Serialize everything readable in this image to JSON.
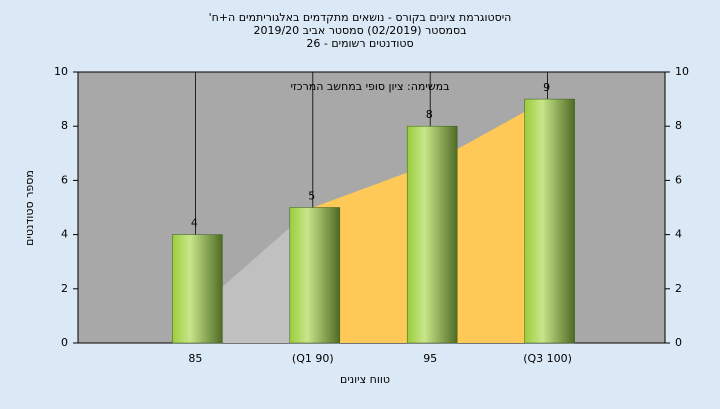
{
  "chart_data": {
    "type": "bar",
    "title_lines": [
      "היסטוגרמת ציונים בקורס - נושאים מתקדמים באלגוריתמים ה+ח'",
      "בסמסטר  (02/2019)  סמסטר אביב 2019/20",
      "סטודנטים רשומים - 26"
    ],
    "annotation": "במשימה: ציון סופי במחשב המרכזי",
    "x_label": "טווח ציונים",
    "y_label": "מספר סטודנטים",
    "categories": [
      "85",
      "(Q1 90)",
      "95",
      "(Q3 100)"
    ],
    "values": [
      4,
      5,
      8,
      9
    ],
    "background_areas": [
      {
        "color": "#c0c0c0",
        "values": [
          1.2,
          5,
          null,
          null
        ]
      },
      {
        "color": "#ffc957",
        "values": [
          null,
          5,
          6.6,
          9
        ]
      }
    ],
    "ylim": [
      0,
      10
    ],
    "yticks": [
      0,
      2,
      4,
      6,
      8,
      10
    ],
    "y2lim": [
      0,
      10
    ],
    "y2ticks": [
      0,
      2,
      4,
      6,
      8,
      10
    ]
  }
}
